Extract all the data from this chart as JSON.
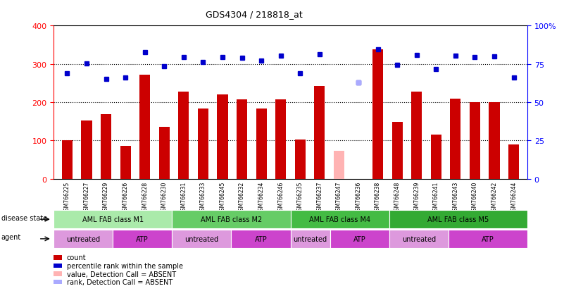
{
  "title": "GDS4304 / 218818_at",
  "samples": [
    "GSM766225",
    "GSM766227",
    "GSM766229",
    "GSM766226",
    "GSM766228",
    "GSM766230",
    "GSM766231",
    "GSM766233",
    "GSM766245",
    "GSM766232",
    "GSM766234",
    "GSM766246",
    "GSM766235",
    "GSM766237",
    "GSM766247",
    "GSM766236",
    "GSM766238",
    "GSM766248",
    "GSM766239",
    "GSM766241",
    "GSM766243",
    "GSM766240",
    "GSM766242",
    "GSM766244"
  ],
  "bar_values": [
    100,
    152,
    168,
    85,
    272,
    135,
    228,
    183,
    220,
    207,
    183,
    207,
    102,
    243,
    null,
    null,
    338,
    148,
    227,
    115,
    210,
    200,
    200,
    90
  ],
  "bar_absent_values": [
    null,
    null,
    null,
    null,
    null,
    null,
    null,
    null,
    null,
    null,
    null,
    null,
    null,
    null,
    72,
    null,
    null,
    null,
    null,
    null,
    null,
    null,
    null,
    null
  ],
  "dot_values": [
    275,
    302,
    260,
    265,
    330,
    293,
    318,
    305,
    318,
    315,
    308,
    322,
    275,
    325,
    null,
    252,
    338,
    298,
    323,
    287,
    322,
    318,
    320,
    265
  ],
  "dot_absent_values": [
    null,
    null,
    null,
    null,
    null,
    null,
    null,
    null,
    null,
    null,
    null,
    null,
    null,
    null,
    null,
    252,
    null,
    null,
    null,
    null,
    null,
    null,
    null,
    null
  ],
  "bar_color": "#cc0000",
  "bar_absent_color": "#ffb3b3",
  "dot_color": "#0000cc",
  "dot_absent_color": "#aaaaff",
  "y_left_ticks": [
    0,
    100,
    200,
    300,
    400
  ],
  "y_right_labels": [
    "0",
    "25",
    "50",
    "75",
    "100%"
  ],
  "disease_groups": [
    {
      "label": "AML FAB class M1",
      "start": 0,
      "end": 6,
      "color": "#aaeaaa"
    },
    {
      "label": "AML FAB class M2",
      "start": 6,
      "end": 12,
      "color": "#66cc66"
    },
    {
      "label": "AML FAB class M4",
      "start": 12,
      "end": 17,
      "color": "#44bb44"
    },
    {
      "label": "AML FAB class M5",
      "start": 17,
      "end": 24,
      "color": "#33aa33"
    }
  ],
  "agent_groups": [
    {
      "label": "untreated",
      "start": 0,
      "end": 3,
      "color": "#dd99dd"
    },
    {
      "label": "ATP",
      "start": 3,
      "end": 6,
      "color": "#cc44cc"
    },
    {
      "label": "untreated",
      "start": 6,
      "end": 9,
      "color": "#dd99dd"
    },
    {
      "label": "ATP",
      "start": 9,
      "end": 12,
      "color": "#cc44cc"
    },
    {
      "label": "untreated",
      "start": 12,
      "end": 14,
      "color": "#dd99dd"
    },
    {
      "label": "ATP",
      "start": 14,
      "end": 17,
      "color": "#cc44cc"
    },
    {
      "label": "untreated",
      "start": 17,
      "end": 20,
      "color": "#dd99dd"
    },
    {
      "label": "ATP",
      "start": 20,
      "end": 24,
      "color": "#cc44cc"
    }
  ],
  "legend_items": [
    {
      "label": "count",
      "color": "#cc0000",
      "type": "square"
    },
    {
      "label": "percentile rank within the sample",
      "color": "#0000cc",
      "type": "square"
    },
    {
      "label": "value, Detection Call = ABSENT",
      "color": "#ffb3b3",
      "type": "square"
    },
    {
      "label": "rank, Detection Call = ABSENT",
      "color": "#aaaaff",
      "type": "square"
    }
  ]
}
